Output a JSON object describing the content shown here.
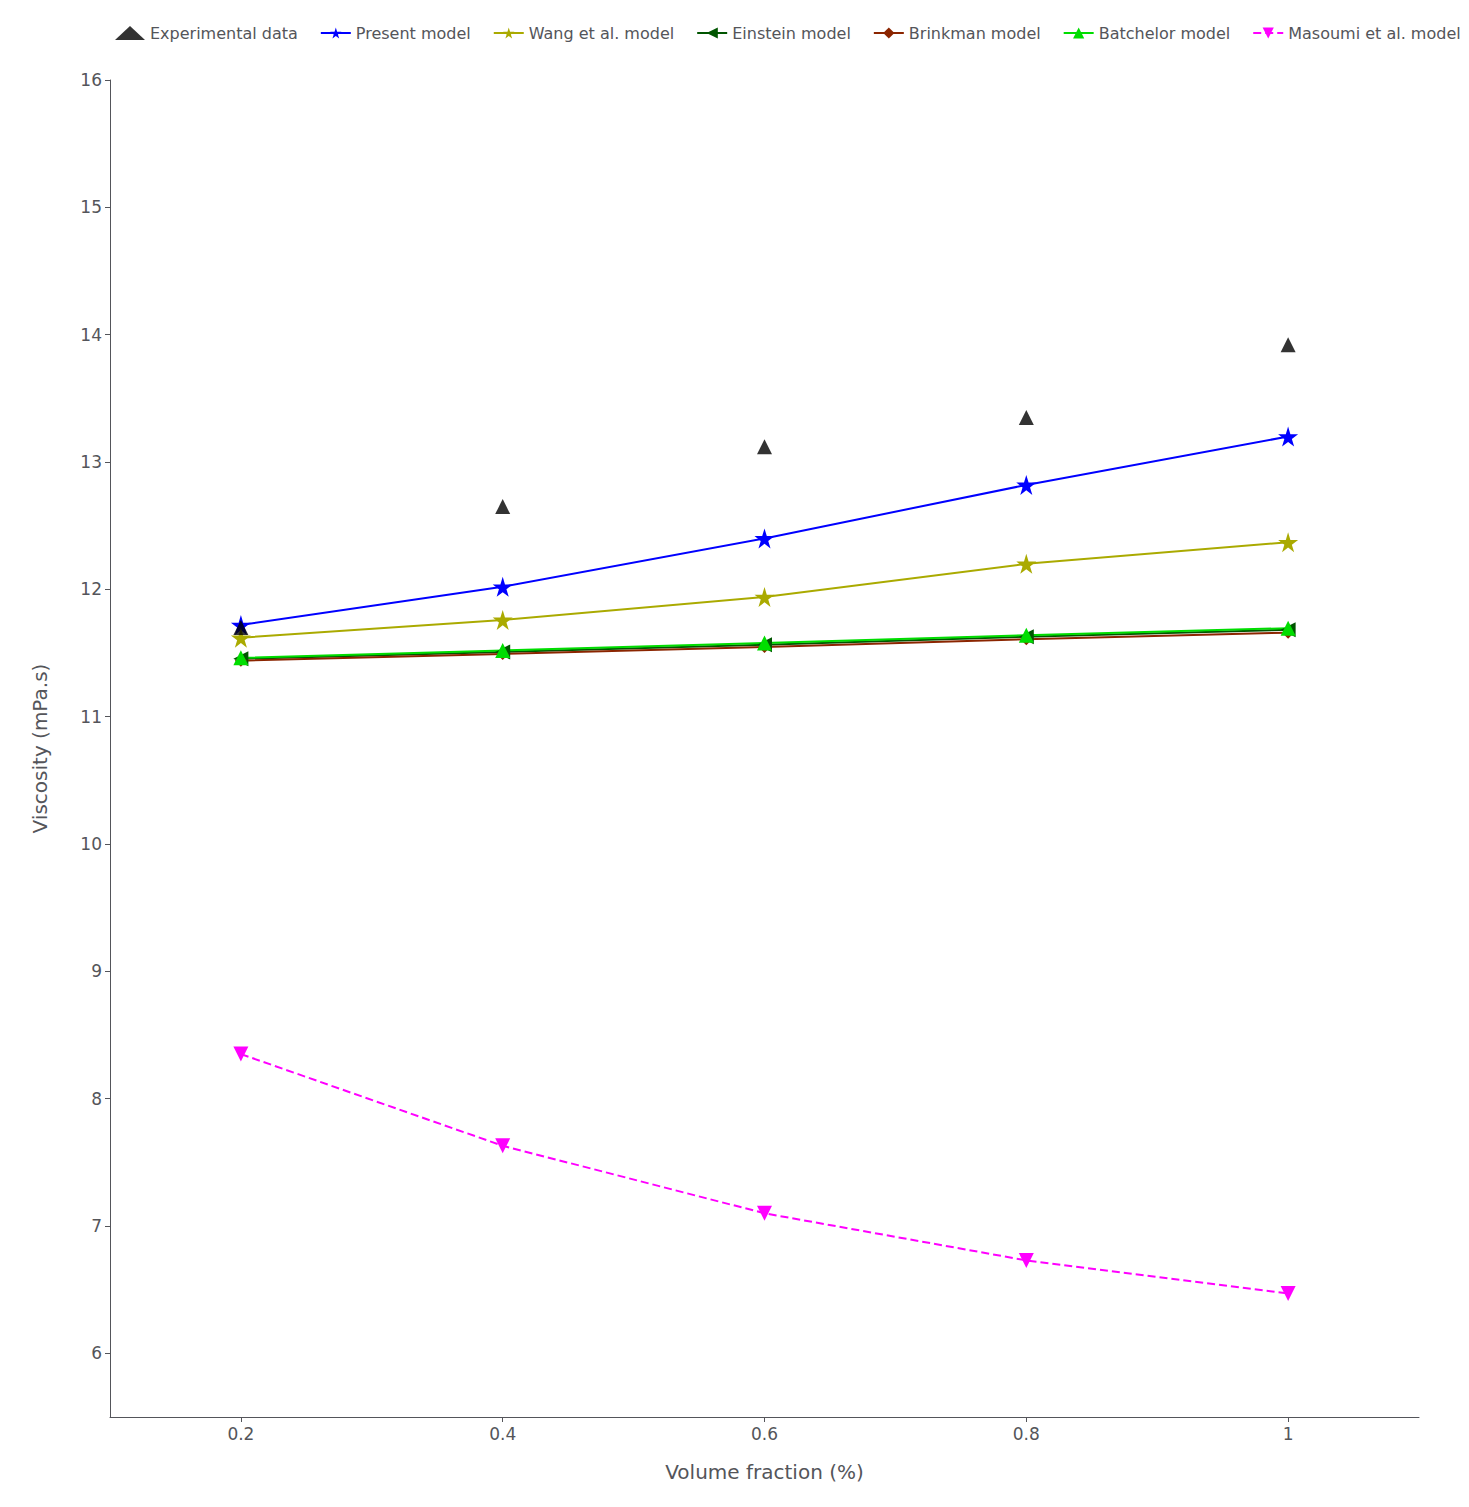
{
  "chart_data": {
    "type": "line",
    "x": [
      0.2,
      0.4,
      0.6,
      0.8,
      1.0
    ],
    "xlabel": "Volume fraction (%)",
    "ylabel": "Viscosity (mPa.s)",
    "xlim": [
      0.1,
      1.1
    ],
    "xticks": [
      0.2,
      0.4,
      0.6,
      0.8,
      1.0
    ],
    "ylim": [
      5.5,
      16.0
    ],
    "yticks": [
      6,
      7,
      8,
      9,
      10,
      11,
      12,
      13,
      14,
      15,
      16
    ],
    "grid": false,
    "legend": "upper left",
    "series": [
      {
        "name": "Experimental data",
        "type": "scatter",
        "color": "#000000",
        "marker": "triangle",
        "values": [
          11.7,
          12.65,
          13.12,
          13.35,
          13.92
        ]
      },
      {
        "name": "Present model",
        "type": "line",
        "color": "#0000FF",
        "marker": "star",
        "line_style": "solid",
        "values": [
          11.72,
          12.02,
          12.4,
          12.82,
          13.2
        ]
      },
      {
        "name": "Wang et al. model",
        "type": "line",
        "color": "#AAAA00",
        "marker": "star",
        "line_style": "solid",
        "values": [
          11.62,
          11.76,
          11.94,
          12.2,
          12.37
        ]
      },
      {
        "name": "Einstein model",
        "type": "line",
        "color": "#005500",
        "marker": "triangle-left",
        "line_style": "solid",
        "values": [
          11.455,
          11.508,
          11.565,
          11.628,
          11.682
        ]
      },
      {
        "name": "Brinkman model",
        "type": "line",
        "color": "#8B2500",
        "marker": "diamond",
        "line_style": "solid",
        "values": [
          11.44,
          11.492,
          11.548,
          11.608,
          11.66
        ]
      },
      {
        "name": "Batchelor model",
        "type": "line",
        "color": "#00DD00",
        "marker": "triangle",
        "line_style": "solid",
        "values": [
          11.462,
          11.52,
          11.578,
          11.64,
          11.695
        ]
      },
      {
        "name": "Masoumi et al. model",
        "type": "line",
        "color": "#FF00FF",
        "marker": "triangle-down",
        "line_style": "dashed",
        "values": [
          8.35,
          7.63,
          7.1,
          6.73,
          6.47
        ]
      }
    ]
  }
}
